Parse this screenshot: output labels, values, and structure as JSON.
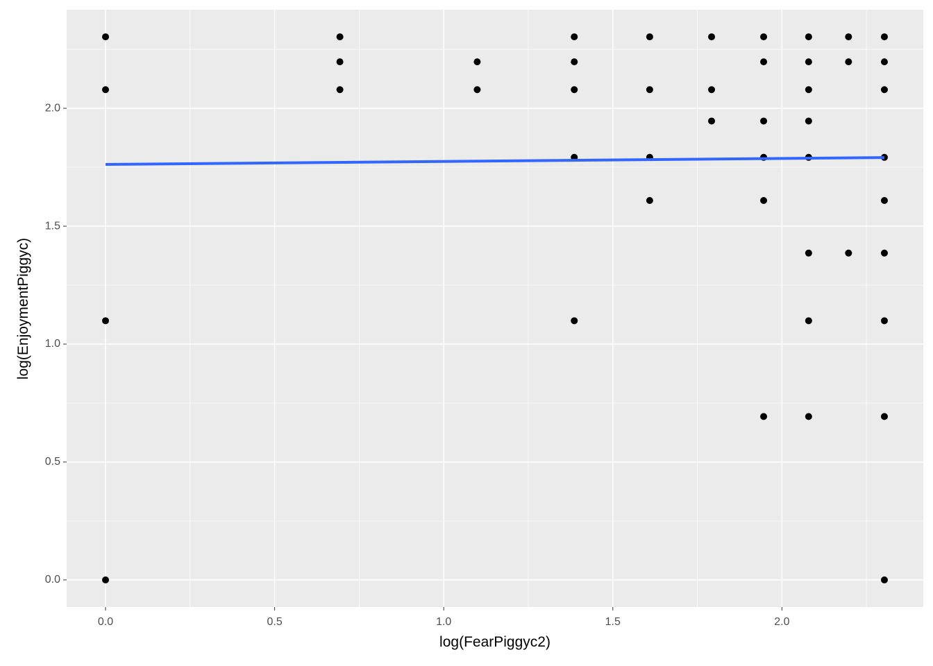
{
  "chart_data": {
    "type": "scatter",
    "x_label": "log(FearPiggyc2)",
    "y_label": "log(EnjoymentPiggyc)",
    "xlim": [
      -0.115,
      2.418
    ],
    "ylim": [
      -0.115,
      2.418
    ],
    "xticks": [
      {
        "value": 0,
        "label": "0.0"
      },
      {
        "value": 0.5,
        "label": "0.5"
      },
      {
        "value": 1,
        "label": "1.0"
      },
      {
        "value": 1.5,
        "label": "1.5"
      },
      {
        "value": 2,
        "label": "2.0"
      }
    ],
    "yticks": [
      {
        "value": 0,
        "label": "0.0"
      },
      {
        "value": 0.5,
        "label": "0.5"
      },
      {
        "value": 1,
        "label": "1.0"
      },
      {
        "value": 1.5,
        "label": "1.5"
      },
      {
        "value": 2,
        "label": "2.0"
      }
    ],
    "grid": true,
    "series": [
      {
        "type": "scatter",
        "color": "#000000",
        "x": [
          0,
          0,
          0,
          0,
          0.693,
          0.693,
          0.693,
          1.099,
          1.099,
          1.386,
          1.386,
          1.386,
          1.386,
          1.386,
          1.609,
          1.609,
          1.609,
          1.609,
          1.792,
          1.792,
          1.792,
          1.946,
          1.946,
          1.946,
          1.946,
          1.946,
          1.946,
          2.079,
          2.079,
          2.079,
          2.079,
          2.079,
          2.079,
          2.079,
          2.079,
          2.197,
          2.197,
          2.197,
          2.303,
          2.303,
          2.303,
          2.303,
          2.303,
          2.303,
          2.303,
          2.303,
          2.303
        ],
        "y": [
          2.303,
          2.079,
          1.099,
          0,
          2.303,
          2.197,
          2.079,
          2.197,
          2.079,
          2.303,
          2.197,
          2.079,
          1.792,
          1.099,
          2.303,
          2.079,
          1.792,
          1.609,
          2.303,
          2.079,
          1.946,
          2.303,
          2.197,
          1.946,
          1.792,
          1.609,
          0.693,
          2.303,
          2.197,
          2.079,
          1.946,
          1.792,
          1.386,
          1.099,
          0.693,
          2.303,
          2.197,
          1.386,
          2.303,
          2.197,
          2.079,
          1.792,
          1.609,
          1.386,
          1.099,
          0.693,
          0
        ]
      },
      {
        "type": "line",
        "color": "#3366FF",
        "x": [
          0,
          2.303
        ],
        "y": [
          1.762,
          1.791
        ]
      }
    ]
  }
}
